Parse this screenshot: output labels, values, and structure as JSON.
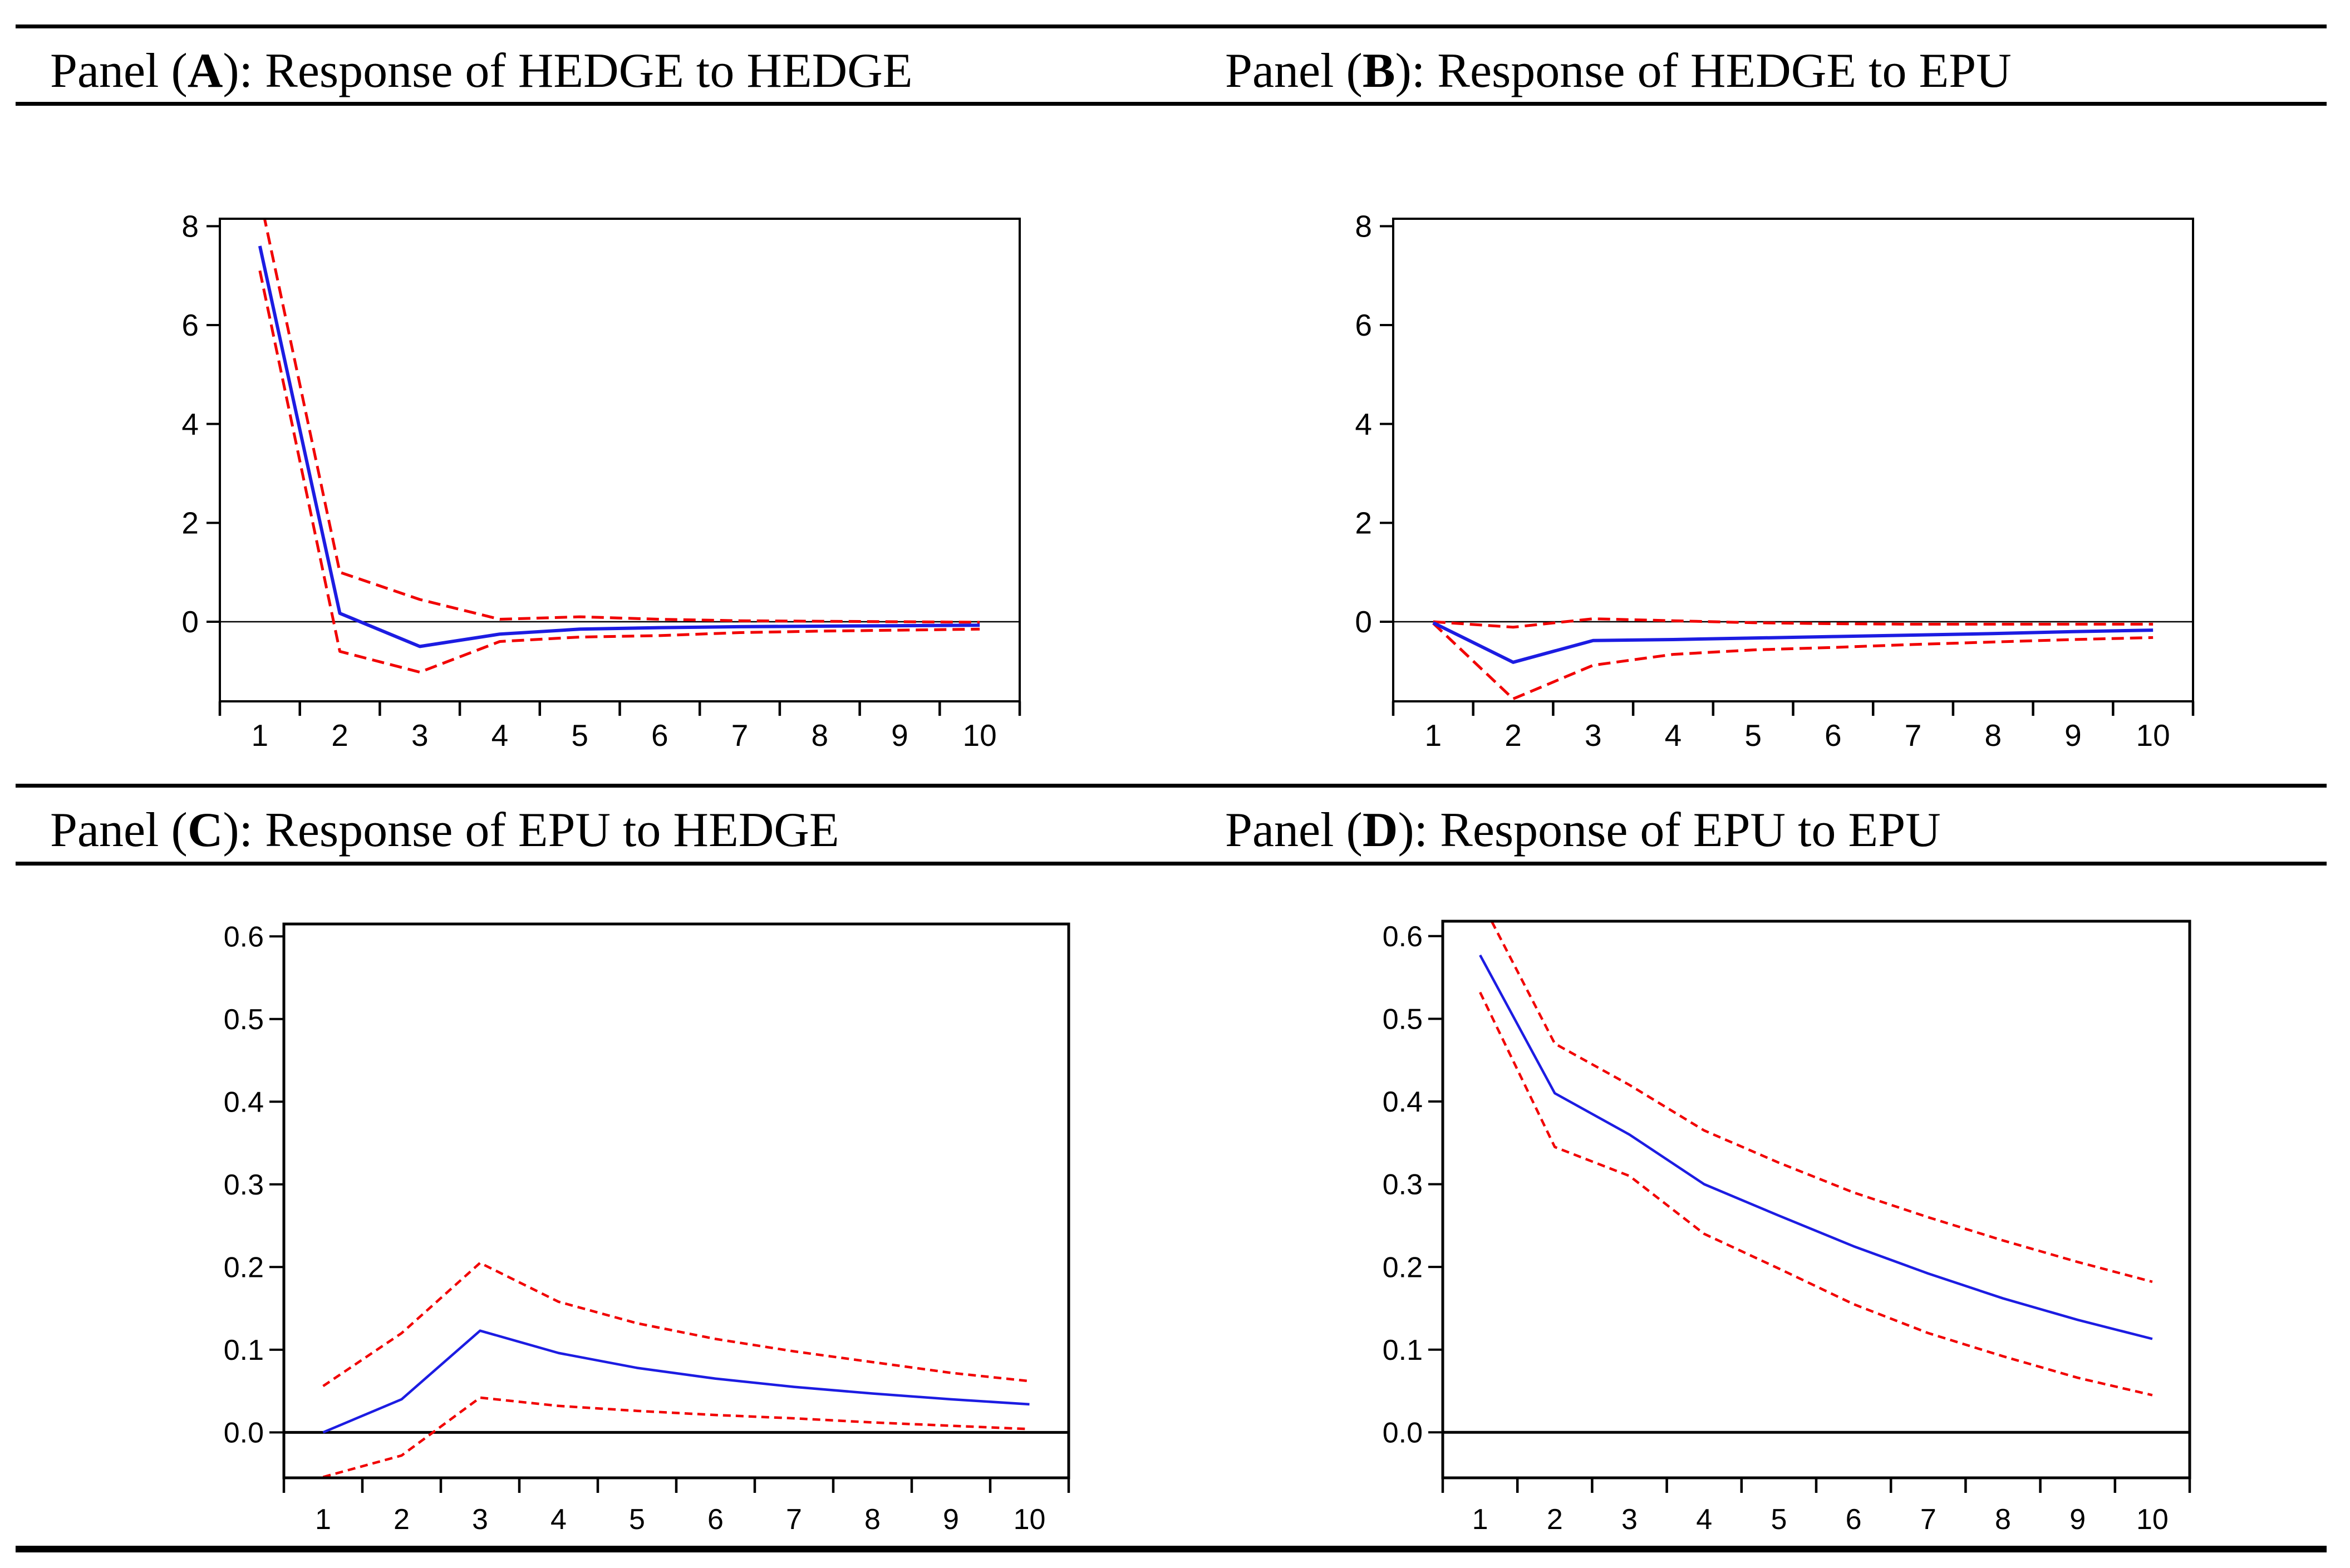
{
  "figure": {
    "kind": "impulse-response-figure",
    "panels": [
      {
        "label": "A",
        "title_prefix": "Panel (",
        "title_letter": "A",
        "title_suffix": "): Response of HEDGE to HEDGE"
      },
      {
        "label": "B",
        "title_prefix": "Panel (",
        "title_letter": "B",
        "title_suffix": "): Response of HEDGE to EPU"
      },
      {
        "label": "C",
        "title_prefix": "Panel (",
        "title_letter": "C",
        "title_suffix": "): Response of EPU to HEDGE"
      },
      {
        "label": "D",
        "title_prefix": "Panel (",
        "title_letter": "D",
        "title_suffix": "): Response of EPU to EPU"
      }
    ]
  },
  "style": {
    "impulse_color": "#1c1ce2",
    "band_color": "#f10000",
    "axis_color": "#000000",
    "background": "#ffffff"
  },
  "chart_data": [
    {
      "type": "line",
      "panel": "A",
      "title": "Response of HEDGE to HEDGE",
      "x": [
        1,
        2,
        3,
        4,
        5,
        6,
        7,
        8,
        9,
        10
      ],
      "xtick_labels": [
        "1",
        "2",
        "3",
        "4",
        "5",
        "6",
        "7",
        "8",
        "9",
        "10"
      ],
      "xlim": [
        0.5,
        10.5
      ],
      "ylim": [
        -1.61,
        8.15
      ],
      "yticks": [
        0,
        2,
        4,
        6,
        8
      ],
      "ytick_labels": [
        "0",
        "2",
        "4",
        "6",
        "8"
      ],
      "zero_line": true,
      "grid": false,
      "legend": null,
      "series": [
        {
          "name": "impulse_response",
          "role": "center",
          "color": "blue",
          "line_style": "solid",
          "values": [
            7.6,
            0.17,
            -0.5,
            -0.25,
            -0.15,
            -0.12,
            -0.1,
            -0.09,
            -0.08,
            -0.07
          ]
        },
        {
          "name": "upper_band",
          "role": "upper",
          "color": "red",
          "line_style": "dashed",
          "values": [
            8.6,
            1.0,
            0.45,
            0.05,
            0.1,
            0.05,
            0.02,
            0.01,
            0.0,
            -0.01
          ]
        },
        {
          "name": "lower_band",
          "role": "lower",
          "color": "red",
          "line_style": "dashed",
          "values": [
            7.1,
            -0.6,
            -1.02,
            -0.4,
            -0.31,
            -0.28,
            -0.22,
            -0.19,
            -0.17,
            -0.15
          ]
        }
      ]
    },
    {
      "type": "line",
      "panel": "B",
      "title": "Response of HEDGE to EPU",
      "x": [
        1,
        2,
        3,
        4,
        5,
        6,
        7,
        8,
        9,
        10
      ],
      "xtick_labels": [
        "1",
        "2",
        "3",
        "4",
        "5",
        "6",
        "7",
        "8",
        "9",
        "10"
      ],
      "xlim": [
        0.5,
        10.5
      ],
      "ylim": [
        -1.61,
        8.15
      ],
      "yticks": [
        0,
        2,
        4,
        6,
        8
      ],
      "ytick_labels": [
        "0",
        "2",
        "4",
        "6",
        "8"
      ],
      "zero_line": true,
      "grid": false,
      "legend": null,
      "series": [
        {
          "name": "impulse_response",
          "role": "center",
          "color": "blue",
          "line_style": "solid",
          "values": [
            -0.02,
            -0.82,
            -0.38,
            -0.36,
            -0.33,
            -0.3,
            -0.27,
            -0.24,
            -0.2,
            -0.17
          ]
        },
        {
          "name": "upper_band",
          "role": "upper",
          "color": "red",
          "line_style": "dashed",
          "values": [
            0.0,
            -0.11,
            0.06,
            0.02,
            -0.02,
            -0.04,
            -0.05,
            -0.05,
            -0.05,
            -0.05
          ]
        },
        {
          "name": "lower_band",
          "role": "lower",
          "color": "red",
          "line_style": "dashed",
          "values": [
            -0.03,
            -1.56,
            -0.88,
            -0.66,
            -0.57,
            -0.52,
            -0.46,
            -0.41,
            -0.36,
            -0.32
          ]
        }
      ]
    },
    {
      "type": "line",
      "panel": "C",
      "title": "Response of EPU to HEDGE",
      "x": [
        1,
        2,
        3,
        4,
        5,
        6,
        7,
        8,
        9,
        10
      ],
      "xtick_labels": [
        "1",
        "2",
        "3",
        "4",
        "5",
        "6",
        "7",
        "8",
        "9",
        "10"
      ],
      "xlim": [
        0.5,
        10.5
      ],
      "ylim": [
        -0.055,
        0.615
      ],
      "yticks": [
        0,
        0.1,
        0.2,
        0.3,
        0.4,
        0.5,
        0.6
      ],
      "ytick_labels": [
        "0.0",
        "0.1",
        "0.2",
        "0.3",
        "0.4",
        "0.5",
        "0.6"
      ],
      "zero_line": true,
      "grid": false,
      "legend": null,
      "series": [
        {
          "name": "impulse_response",
          "role": "center",
          "color": "blue",
          "line_style": "solid",
          "values": [
            0.0,
            0.04,
            0.123,
            0.096,
            0.078,
            0.065,
            0.055,
            0.047,
            0.04,
            0.034
          ]
        },
        {
          "name": "upper_band",
          "role": "upper",
          "color": "red",
          "line_style": "dashed",
          "values": [
            0.056,
            0.12,
            0.205,
            0.158,
            0.132,
            0.113,
            0.098,
            0.085,
            0.072,
            0.062
          ]
        },
        {
          "name": "lower_band",
          "role": "lower",
          "color": "red",
          "line_style": "dashed",
          "values": [
            -0.054,
            -0.028,
            0.042,
            0.032,
            0.026,
            0.021,
            0.017,
            0.012,
            0.008,
            0.004
          ]
        }
      ]
    },
    {
      "type": "line",
      "panel": "D",
      "title": "Response of EPU to EPU",
      "x": [
        1,
        2,
        3,
        4,
        5,
        6,
        7,
        8,
        9,
        10
      ],
      "xtick_labels": [
        "1",
        "2",
        "3",
        "4",
        "5",
        "6",
        "7",
        "8",
        "9",
        "10"
      ],
      "xlim": [
        0.5,
        10.5
      ],
      "ylim": [
        -0.055,
        0.618
      ],
      "yticks": [
        0,
        0.1,
        0.2,
        0.3,
        0.4,
        0.5,
        0.6
      ],
      "ytick_labels": [
        "0.0",
        "0.1",
        "0.2",
        "0.3",
        "0.4",
        "0.5",
        "0.6"
      ],
      "zero_line": true,
      "grid": false,
      "legend": null,
      "series": [
        {
          "name": "impulse_response",
          "role": "center",
          "color": "blue",
          "line_style": "solid",
          "values": [
            0.577,
            0.41,
            0.36,
            0.3,
            0.262,
            0.225,
            0.192,
            0.162,
            0.136,
            0.113
          ]
        },
        {
          "name": "upper_band",
          "role": "upper",
          "color": "red",
          "line_style": "dashed",
          "values": [
            0.645,
            0.47,
            0.42,
            0.365,
            0.326,
            0.29,
            0.26,
            0.232,
            0.206,
            0.182
          ]
        },
        {
          "name": "lower_band",
          "role": "lower",
          "color": "red",
          "line_style": "dashed",
          "values": [
            0.532,
            0.345,
            0.31,
            0.24,
            0.198,
            0.155,
            0.12,
            0.092,
            0.066,
            0.045
          ]
        }
      ]
    }
  ]
}
